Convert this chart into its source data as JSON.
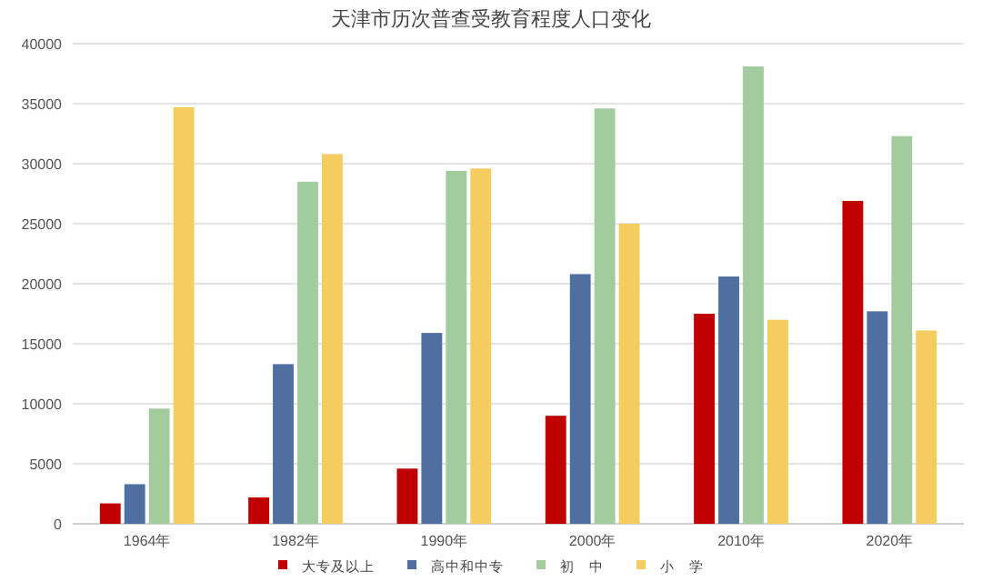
{
  "chart_data": {
    "type": "bar",
    "title": "天津市历次普查受教育程度人口变化",
    "categories": [
      "1964年",
      "1982年",
      "1990年",
      "2000年",
      "2010年",
      "2020年"
    ],
    "series": [
      {
        "name": "大专及以上",
        "color": "#c00000",
        "values": [
          1700,
          2200,
          4600,
          9000,
          17500,
          26900
        ]
      },
      {
        "name": "高中和中专",
        "color": "#4e6f9f",
        "values": [
          3300,
          13300,
          15900,
          20800,
          20600,
          17700
        ]
      },
      {
        "name": "初　中",
        "color": "#a3cc9e",
        "values": [
          9600,
          28500,
          29400,
          34600,
          38100,
          32300
        ]
      },
      {
        "name": "小　学",
        "color": "#f5cc5f",
        "values": [
          34700,
          30800,
          29600,
          25000,
          17000,
          16100
        ]
      }
    ],
    "ylim": [
      0,
      40000
    ],
    "yticks": [
      0,
      5000,
      10000,
      15000,
      20000,
      25000,
      30000,
      35000,
      40000
    ],
    "grid": "y",
    "legend": "bottom"
  }
}
